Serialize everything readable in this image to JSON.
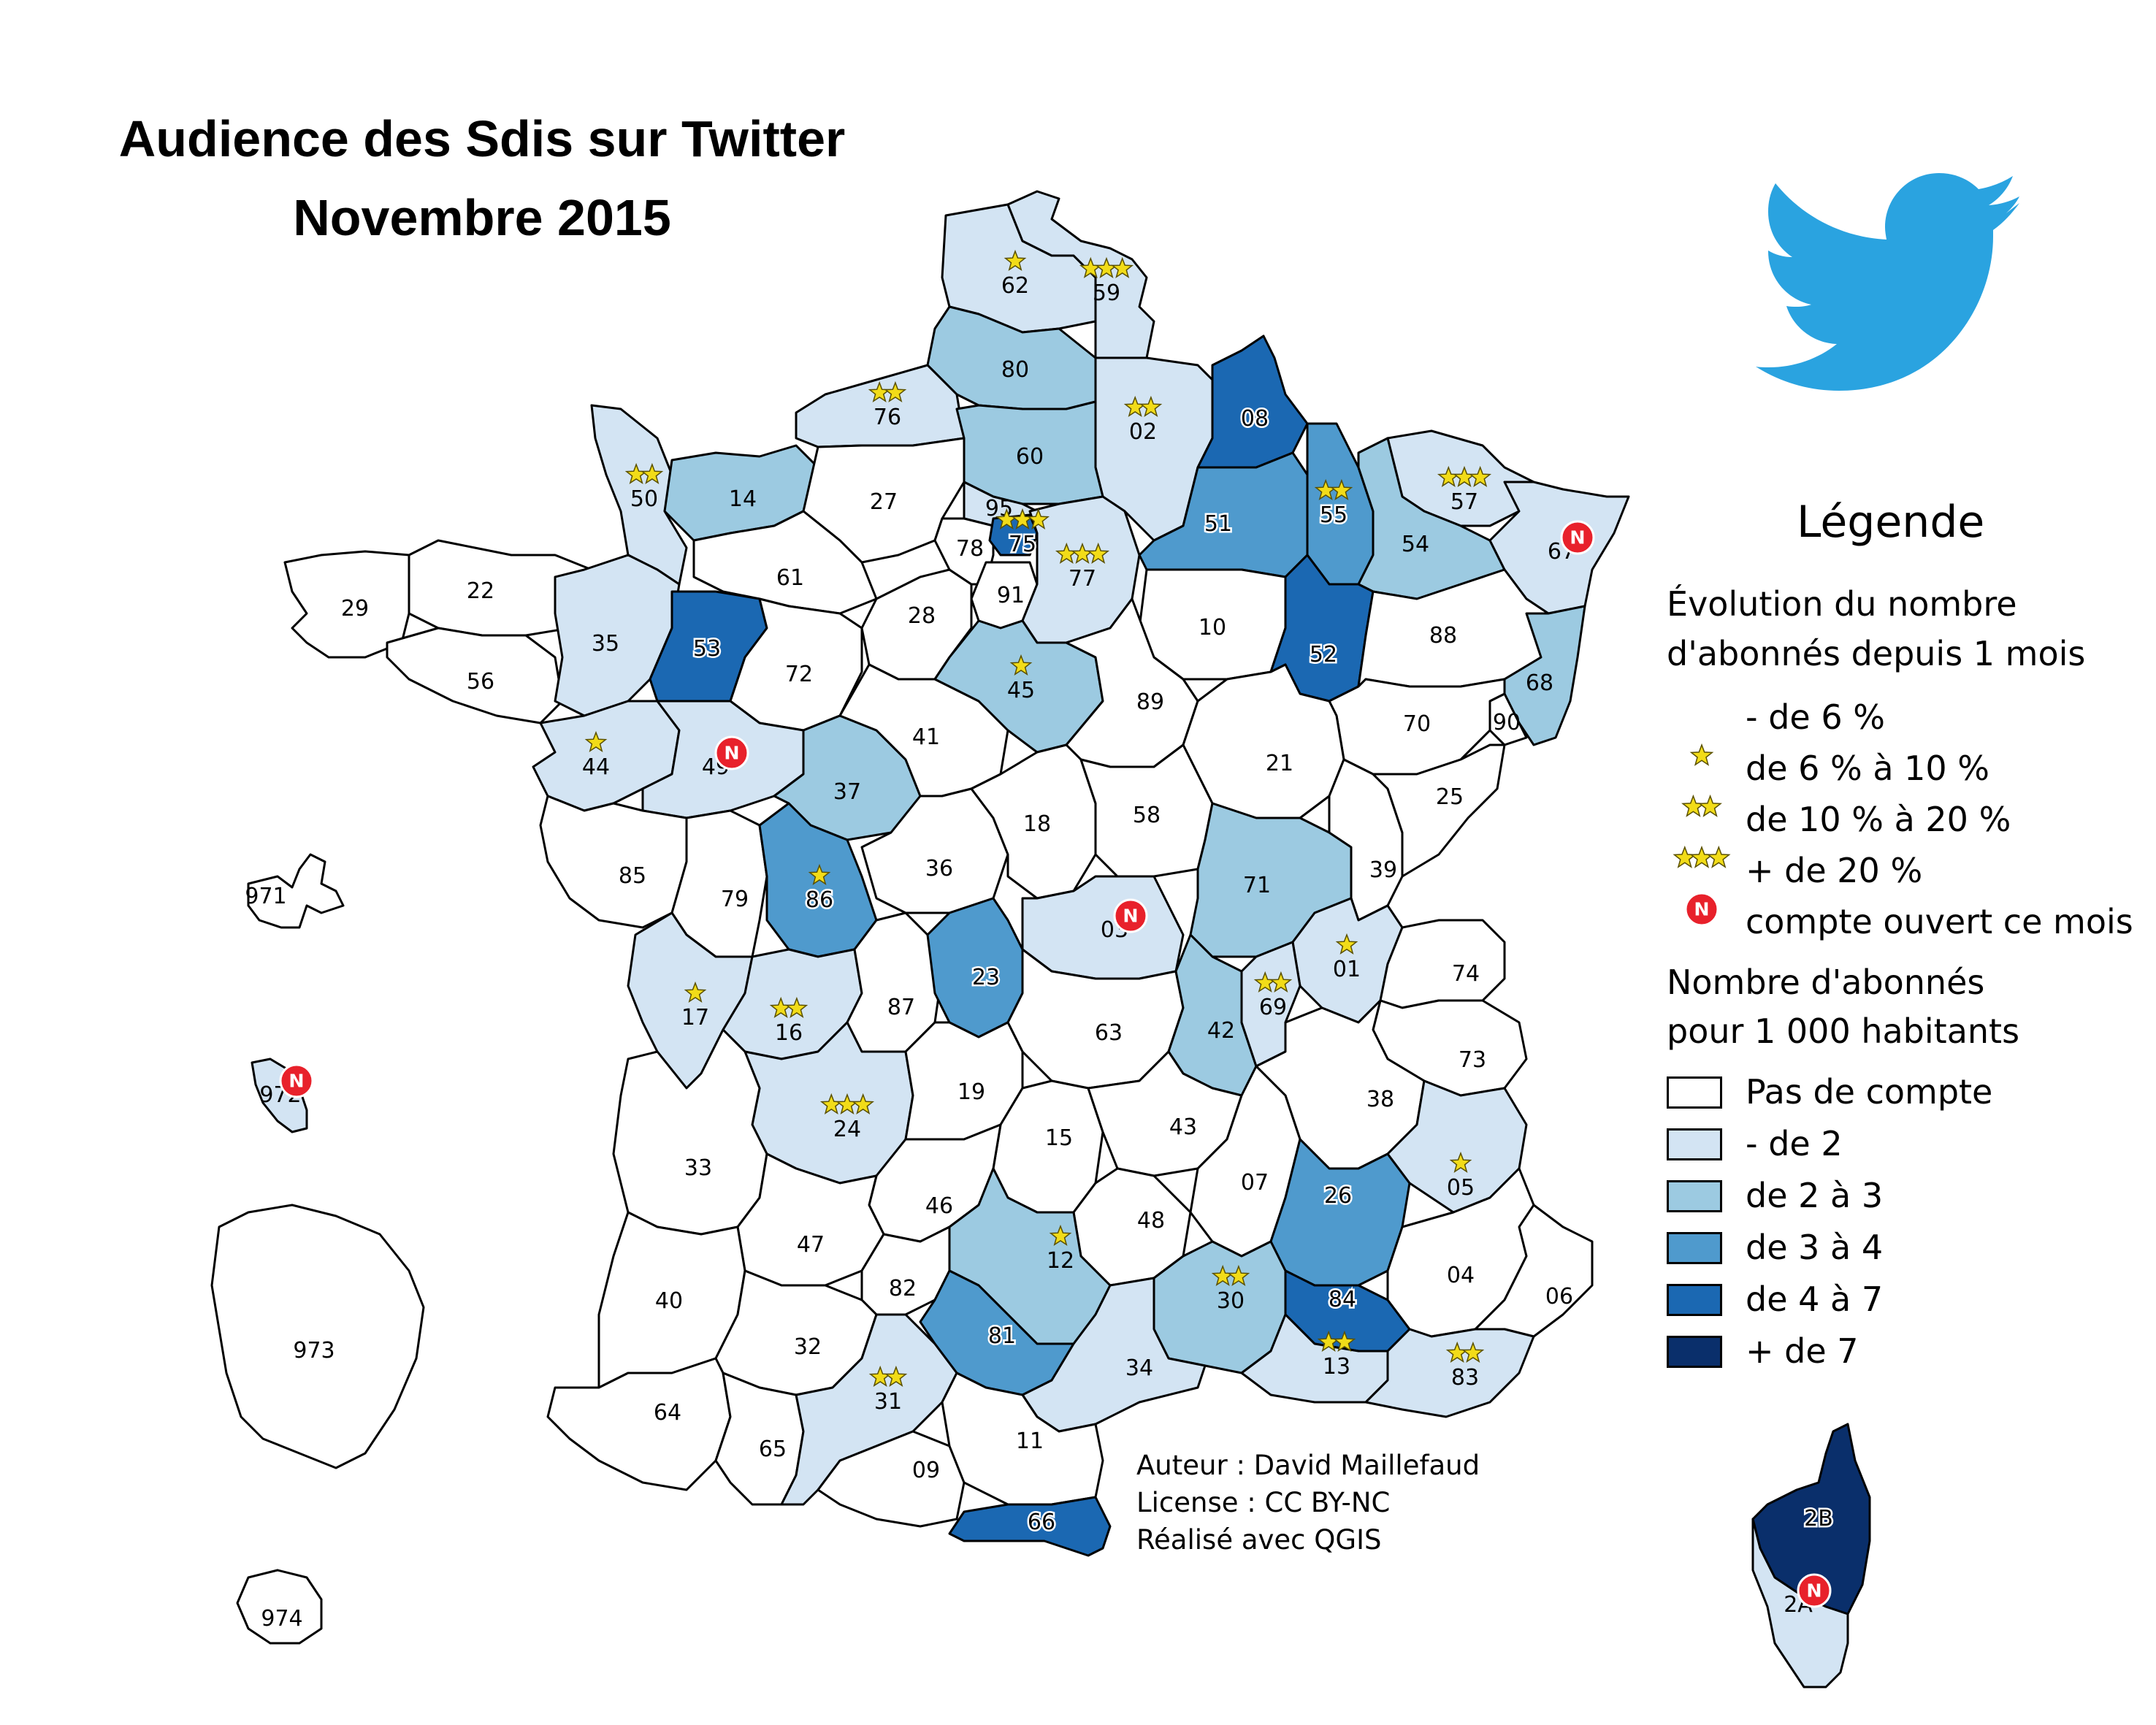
{
  "title": {
    "line1": "Audience des Sdis sur Twitter",
    "line2": "Novembre 2015"
  },
  "credits": {
    "author": "Auteur : David Maillefaud",
    "license": "License : CC BY-NC",
    "tool": "Réalisé avec QGIS"
  },
  "legend": {
    "title": "Légende",
    "evolution_heading_1": "Évolution du nombre",
    "evolution_heading_2": "d'abonnés depuis 1 mois",
    "evolution_items": [
      {
        "label": "- de 6 %",
        "stars": 0
      },
      {
        "label": "de 6 % à 10 %",
        "stars": 1
      },
      {
        "label": "de 10 % à 20 %",
        "stars": 2
      },
      {
        "label": "+ de 20 %",
        "stars": 3
      },
      {
        "label": "compte ouvert ce mois",
        "stars": 0,
        "symbol": "N"
      }
    ],
    "density_heading_1": "Nombre d'abonnés",
    "density_heading_2": "pour 1 000 habitants",
    "density_classes": [
      {
        "label": "Pas de compte",
        "color": "#ffffff"
      },
      {
        "label": "- de 2",
        "color": "#d3e4f3"
      },
      {
        "label": "de 2 à 3",
        "color": "#9ccae1"
      },
      {
        "label": "de 3 à 4",
        "color": "#4f9acd"
      },
      {
        "label": "de 4 à 7",
        "color": "#1b68b2"
      },
      {
        "label": "+ de 7",
        "color": "#0a2f6b"
      }
    ]
  },
  "symbols": {
    "new_account_letter": "N",
    "star_color": "#f2dc18",
    "new_account_color": "#e8212b",
    "twitter_blue": "#2aa3e0"
  },
  "departments": [
    {
      "code": "62",
      "cls": 1,
      "stars": 1
    },
    {
      "code": "59",
      "cls": 1,
      "stars": 3
    },
    {
      "code": "80",
      "cls": 2,
      "stars": 0
    },
    {
      "code": "76",
      "cls": 1,
      "stars": 2
    },
    {
      "code": "02",
      "cls": 1,
      "stars": 2
    },
    {
      "code": "08",
      "cls": 4,
      "stars": 0
    },
    {
      "code": "60",
      "cls": 2,
      "stars": 0
    },
    {
      "code": "50",
      "cls": 1,
      "stars": 2
    },
    {
      "code": "14",
      "cls": 2,
      "stars": 0
    },
    {
      "code": "27",
      "cls": 0,
      "stars": 0
    },
    {
      "code": "95",
      "cls": 1,
      "stars": 0
    },
    {
      "code": "51",
      "cls": 3,
      "stars": 0
    },
    {
      "code": "55",
      "cls": 3,
      "stars": 2
    },
    {
      "code": "57",
      "cls": 1,
      "stars": 3
    },
    {
      "code": "67",
      "cls": 1,
      "stars": 0,
      "new": true
    },
    {
      "code": "75",
      "cls": 4,
      "stars": 3
    },
    {
      "code": "78",
      "cls": 0,
      "stars": 0
    },
    {
      "code": "77",
      "cls": 1,
      "stars": 3
    },
    {
      "code": "54",
      "cls": 2,
      "stars": 0
    },
    {
      "code": "61",
      "cls": 0,
      "stars": 0
    },
    {
      "code": "22",
      "cls": 0,
      "stars": 0
    },
    {
      "code": "29",
      "cls": 0,
      "stars": 0
    },
    {
      "code": "91",
      "cls": 0,
      "stars": 0
    },
    {
      "code": "28",
      "cls": 0,
      "stars": 0
    },
    {
      "code": "10",
      "cls": 0,
      "stars": 0
    },
    {
      "code": "52",
      "cls": 4,
      "stars": 0
    },
    {
      "code": "88",
      "cls": 0,
      "stars": 0
    },
    {
      "code": "35",
      "cls": 1,
      "stars": 0
    },
    {
      "code": "53",
      "cls": 4,
      "stars": 0
    },
    {
      "code": "56",
      "cls": 0,
      "stars": 0
    },
    {
      "code": "72",
      "cls": 0,
      "stars": 0
    },
    {
      "code": "45",
      "cls": 2,
      "stars": 1
    },
    {
      "code": "89",
      "cls": 0,
      "stars": 0
    },
    {
      "code": "68",
      "cls": 2,
      "stars": 0
    },
    {
      "code": "90",
      "cls": 0,
      "stars": 0
    },
    {
      "code": "70",
      "cls": 0,
      "stars": 0
    },
    {
      "code": "44",
      "cls": 1,
      "stars": 1
    },
    {
      "code": "49",
      "cls": 1,
      "stars": 0,
      "new": true
    },
    {
      "code": "41",
      "cls": 0,
      "stars": 0
    },
    {
      "code": "21",
      "cls": 0,
      "stars": 0
    },
    {
      "code": "25",
      "cls": 0,
      "stars": 0
    },
    {
      "code": "37",
      "cls": 2,
      "stars": 0
    },
    {
      "code": "18",
      "cls": 0,
      "stars": 0
    },
    {
      "code": "58",
      "cls": 0,
      "stars": 0
    },
    {
      "code": "85",
      "cls": 0,
      "stars": 0
    },
    {
      "code": "36",
      "cls": 0,
      "stars": 0
    },
    {
      "code": "39",
      "cls": 0,
      "stars": 0
    },
    {
      "code": "79",
      "cls": 0,
      "stars": 0
    },
    {
      "code": "86",
      "cls": 3,
      "stars": 1
    },
    {
      "code": "71",
      "cls": 2,
      "stars": 0
    },
    {
      "code": "03",
      "cls": 1,
      "stars": 0,
      "new": true
    },
    {
      "code": "01",
      "cls": 1,
      "stars": 1
    },
    {
      "code": "74",
      "cls": 0,
      "stars": 0
    },
    {
      "code": "17",
      "cls": 1,
      "stars": 1
    },
    {
      "code": "16",
      "cls": 1,
      "stars": 2
    },
    {
      "code": "87",
      "cls": 0,
      "stars": 0
    },
    {
      "code": "23",
      "cls": 3,
      "stars": 0
    },
    {
      "code": "63",
      "cls": 0,
      "stars": 0
    },
    {
      "code": "42",
      "cls": 2,
      "stars": 0
    },
    {
      "code": "69",
      "cls": 1,
      "stars": 2
    },
    {
      "code": "73",
      "cls": 0,
      "stars": 0
    },
    {
      "code": "19",
      "cls": 0,
      "stars": 0
    },
    {
      "code": "38",
      "cls": 0,
      "stars": 0
    },
    {
      "code": "24",
      "cls": 1,
      "stars": 3
    },
    {
      "code": "15",
      "cls": 0,
      "stars": 0
    },
    {
      "code": "43",
      "cls": 0,
      "stars": 0
    },
    {
      "code": "33",
      "cls": 0,
      "stars": 0
    },
    {
      "code": "07",
      "cls": 0,
      "stars": 0
    },
    {
      "code": "26",
      "cls": 3,
      "stars": 0
    },
    {
      "code": "05",
      "cls": 1,
      "stars": 1
    },
    {
      "code": "46",
      "cls": 0,
      "stars": 0
    },
    {
      "code": "48",
      "cls": 0,
      "stars": 0
    },
    {
      "code": "47",
      "cls": 0,
      "stars": 0
    },
    {
      "code": "12",
      "cls": 2,
      "stars": 1
    },
    {
      "code": "40",
      "cls": 0,
      "stars": 0
    },
    {
      "code": "82",
      "cls": 0,
      "stars": 0
    },
    {
      "code": "30",
      "cls": 2,
      "stars": 2
    },
    {
      "code": "84",
      "cls": 4,
      "stars": 0
    },
    {
      "code": "04",
      "cls": 0,
      "stars": 0
    },
    {
      "code": "06",
      "cls": 0,
      "stars": 0
    },
    {
      "code": "81",
      "cls": 3,
      "stars": 0
    },
    {
      "code": "32",
      "cls": 0,
      "stars": 0
    },
    {
      "code": "34",
      "cls": 1,
      "stars": 0
    },
    {
      "code": "13",
      "cls": 1,
      "stars": 2
    },
    {
      "code": "83",
      "cls": 1,
      "stars": 2
    },
    {
      "code": "64",
      "cls": 0,
      "stars": 0
    },
    {
      "code": "31",
      "cls": 1,
      "stars": 2
    },
    {
      "code": "11",
      "cls": 0,
      "stars": 0
    },
    {
      "code": "65",
      "cls": 0,
      "stars": 0
    },
    {
      "code": "09",
      "cls": 0,
      "stars": 0
    },
    {
      "code": "66",
      "cls": 4,
      "stars": 0
    },
    {
      "code": "971",
      "cls": 0,
      "stars": 0
    },
    {
      "code": "972",
      "cls": 1,
      "stars": 0,
      "new": true
    },
    {
      "code": "973",
      "cls": 0,
      "stars": 0
    },
    {
      "code": "974",
      "cls": 0,
      "stars": 0
    },
    {
      "code": "2B",
      "cls": 5,
      "stars": 0
    },
    {
      "code": "2A",
      "cls": 1,
      "stars": 0,
      "new": true
    }
  ]
}
